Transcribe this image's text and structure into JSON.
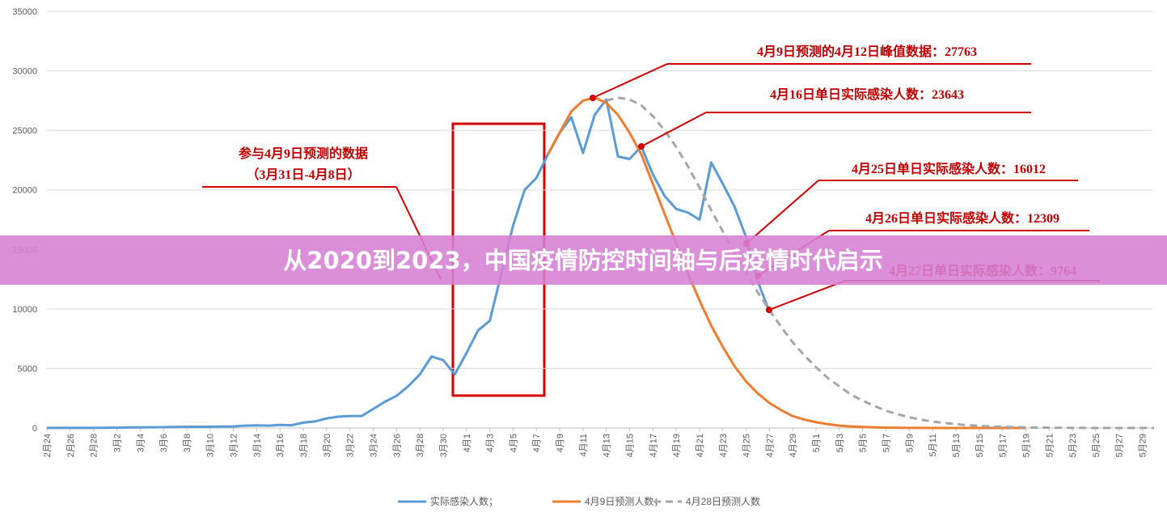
{
  "chart_data": {
    "type": "line",
    "categories": [
      "2月24",
      null,
      "2月26",
      null,
      "2月28",
      null,
      "3月2",
      null,
      "3月4",
      null,
      "3月6",
      null,
      "3月8",
      null,
      "3月10",
      null,
      "3月12",
      null,
      "3月14",
      null,
      "3月16",
      null,
      "3月18",
      null,
      "3月20",
      null,
      "3月22",
      null,
      "3月24",
      null,
      "3月26",
      null,
      "3月28",
      null,
      "3月30",
      null,
      "4月1",
      null,
      "4月3",
      null,
      "4月5",
      null,
      "4月7",
      null,
      "4月9",
      null,
      "4月11",
      null,
      "4月13",
      null,
      "4月15",
      null,
      "4月17",
      null,
      "4月19",
      null,
      "4月21",
      null,
      "4月23",
      null,
      "4月25",
      null,
      "4月27",
      null,
      "4月29",
      null,
      "5月1",
      null,
      "5月3",
      null,
      "5月5",
      null,
      "5月7",
      null,
      "5月9",
      null,
      "5月11",
      null,
      "5月13",
      null,
      "5月15",
      null,
      "5月17",
      null,
      "5月19",
      null,
      "5月21",
      null,
      "5月23",
      null,
      "5月25",
      null,
      "5月27",
      null,
      "5月29",
      null
    ],
    "series": [
      {
        "name": "实际感染人数；",
        "color": "#5b9bd5",
        "dashed": false,
        "values": [
          5,
          8,
          10,
          10,
          10,
          20,
          30,
          40,
          50,
          60,
          70,
          80,
          100,
          100,
          100,
          120,
          130,
          200,
          220,
          200,
          260,
          230,
          450,
          550,
          800,
          950,
          1000,
          1000,
          1600,
          2200,
          2700,
          3500,
          4500,
          6000,
          5700,
          4500,
          6300,
          8200,
          9000,
          13000,
          17000,
          20000,
          21000,
          23000,
          24800,
          26100,
          23100,
          26300,
          27600,
          22800,
          22600,
          23643,
          21300,
          19500,
          18400,
          18100,
          17500,
          22300,
          20500,
          18600,
          16012,
          12309,
          9764,
          null,
          null,
          null,
          null,
          null,
          null,
          null,
          null,
          null,
          null,
          null,
          null,
          null,
          null,
          null,
          null,
          null,
          null,
          null,
          null,
          null,
          null,
          null,
          null,
          null,
          null,
          null,
          null,
          null,
          null,
          null,
          null,
          null
        ]
      },
      {
        "name": "4月9日预测人数；",
        "color": "#ed7d31",
        "dashed": false,
        "values": [
          null,
          null,
          null,
          null,
          null,
          null,
          null,
          null,
          null,
          null,
          null,
          null,
          null,
          null,
          null,
          null,
          null,
          null,
          null,
          null,
          null,
          null,
          null,
          null,
          null,
          null,
          null,
          null,
          null,
          null,
          null,
          null,
          null,
          null,
          null,
          null,
          null,
          null,
          null,
          null,
          null,
          null,
          null,
          23000,
          24800,
          26600,
          27500,
          27763,
          27300,
          26300,
          24800,
          23000,
          20500,
          18000,
          15500,
          13000,
          10700,
          8600,
          6800,
          5200,
          3900,
          2900,
          2100,
          1500,
          1000,
          700,
          480,
          320,
          200,
          130,
          80,
          50,
          30,
          20,
          10,
          5,
          0,
          0,
          0,
          0,
          0,
          0,
          0,
          0,
          0,
          null,
          null,
          null,
          null,
          null,
          null,
          null,
          null,
          null,
          null,
          null
        ]
      },
      {
        "name": "4月28日预测人数",
        "color": "#a5a5a5",
        "dashed": true,
        "values": [
          null,
          null,
          null,
          null,
          null,
          null,
          null,
          null,
          null,
          null,
          null,
          null,
          null,
          null,
          null,
          null,
          null,
          null,
          null,
          null,
          null,
          null,
          null,
          null,
          null,
          null,
          null,
          null,
          null,
          null,
          null,
          null,
          null,
          null,
          null,
          null,
          null,
          null,
          null,
          null,
          null,
          null,
          null,
          null,
          null,
          null,
          null,
          null,
          27500,
          27750,
          27600,
          27100,
          26200,
          25000,
          23600,
          22000,
          20200,
          18300,
          16500,
          14700,
          13000,
          11400,
          9900,
          8500,
          7200,
          6100,
          5100,
          4200,
          3500,
          2800,
          2300,
          1850,
          1450,
          1150,
          900,
          700,
          540,
          420,
          320,
          240,
          180,
          130,
          100,
          70,
          50,
          35,
          25,
          15,
          10,
          5,
          0,
          0,
          0,
          0,
          0,
          0
        ]
      }
    ],
    "ylim": [
      0,
      35000
    ],
    "yticks": [
      0,
      5000,
      10000,
      15000,
      20000,
      25000,
      30000,
      35000
    ],
    "grid": true,
    "annotations": [
      "参与4月9日预测的数据",
      "（3月31日-4月8日）",
      "4月9日预测的4月12日峰值数据：27763",
      "4月16日单日实际感染人数：23643",
      "4月25日单日实际感染人数：16012",
      "4月26日单日实际感染人数：12309",
      "4月27日单日实际感染人数：9764"
    ]
  },
  "banner": {
    "title": "从2020到2023，中国疫情防控时间轴与后疫情时代启示"
  }
}
